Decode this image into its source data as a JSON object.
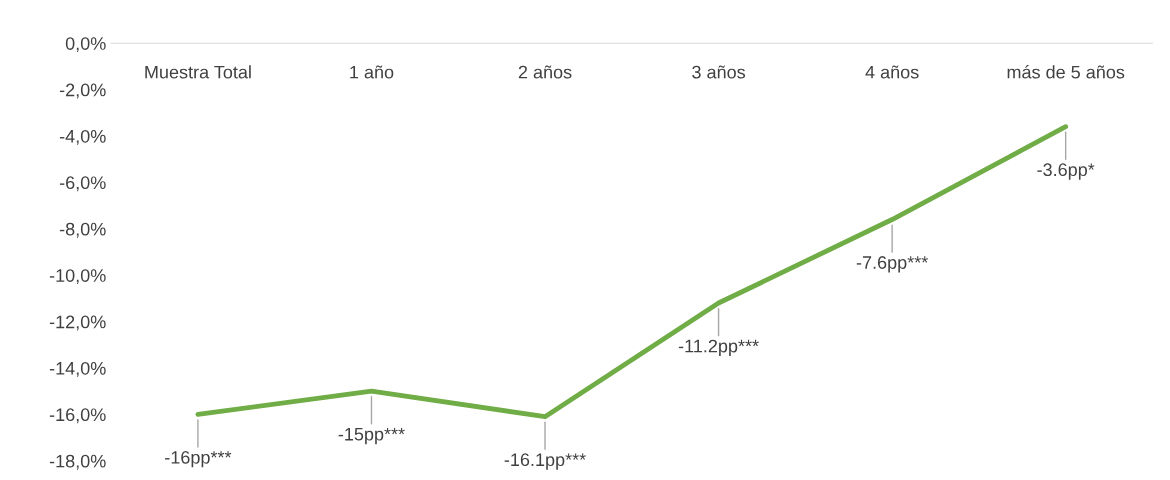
{
  "chart_data": {
    "type": "line",
    "categories": [
      "Muestra Total",
      "1 año",
      "2 años",
      "3 años",
      "4 años",
      "más de 5 años"
    ],
    "series": [
      {
        "color": "#70ad47",
        "values": [
          -16,
          -15,
          -16.1,
          -11.2,
          -7.6,
          -3.6
        ],
        "value_labels": [
          "-16pp***",
          "-15pp***",
          "-16.1pp***",
          "-11.2pp***",
          "-7.6pp***",
          "-3.6pp*"
        ]
      }
    ],
    "ylim": [
      -18,
      0
    ],
    "yticks": [
      {
        "value": 0,
        "label": "0,0%"
      },
      {
        "value": -2,
        "label": "-2,0%"
      },
      {
        "value": -4,
        "label": "-4,0%"
      },
      {
        "value": -6,
        "label": "-6,0%"
      },
      {
        "value": -8,
        "label": "-8,0%"
      },
      {
        "value": -10,
        "label": "-10,0%"
      },
      {
        "value": -12,
        "label": "-12,0%"
      },
      {
        "value": -14,
        "label": "-14,0%"
      },
      {
        "value": -16,
        "label": "-16,0%"
      },
      {
        "value": -18,
        "label": "-18,0%"
      }
    ],
    "marker": "none",
    "line_style": "solid"
  }
}
